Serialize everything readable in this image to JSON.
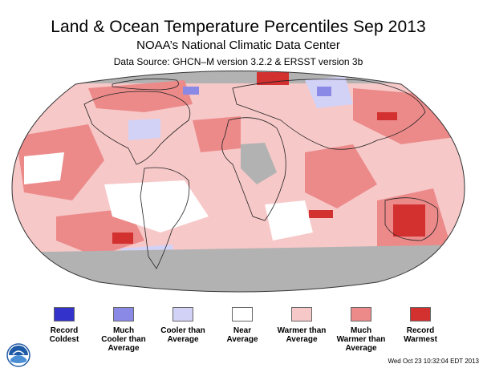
{
  "title": "Land & Ocean Temperature Percentiles Sep 2013",
  "subtitle": "NOAA’s National Climatic Data Center",
  "source": "Data Source: GHCN–M version 3.2.2 & ERSST version 3b",
  "timestamp": "Wed Oct 23 10:32:04 EDT 2013",
  "colors": {
    "record_coldest": "#3333cc",
    "much_cooler": "#8a8ae6",
    "cooler": "#d2d2f7",
    "near_average": "#ffffff",
    "warmer": "#f7c8c8",
    "much_warmer": "#ec8a8a",
    "record_warmest": "#d33030",
    "no_data": "#b2b2b2"
  },
  "legend": [
    {
      "line1": "Record",
      "line2": "Coldest",
      "line3": "",
      "color": "#3333cc"
    },
    {
      "line1": "Much",
      "line2": "Cooler than",
      "line3": "Average",
      "color": "#8a8ae6"
    },
    {
      "line1": "Cooler than",
      "line2": "Average",
      "line3": "",
      "color": "#d2d2f7"
    },
    {
      "line1": "Near",
      "line2": "Average",
      "line3": "",
      "color": "#ffffff"
    },
    {
      "line1": "Warmer than",
      "line2": "Average",
      "line3": "",
      "color": "#f7c8c8"
    },
    {
      "line1": "Much",
      "line2": "Warmer than",
      "line3": "Average",
      "color": "#ec8a8a"
    },
    {
      "line1": "Record",
      "line2": "Warmest",
      "line3": "",
      "color": "#d33030"
    }
  ],
  "logo": {
    "name": "noaa-logo",
    "text": "NOAA"
  }
}
